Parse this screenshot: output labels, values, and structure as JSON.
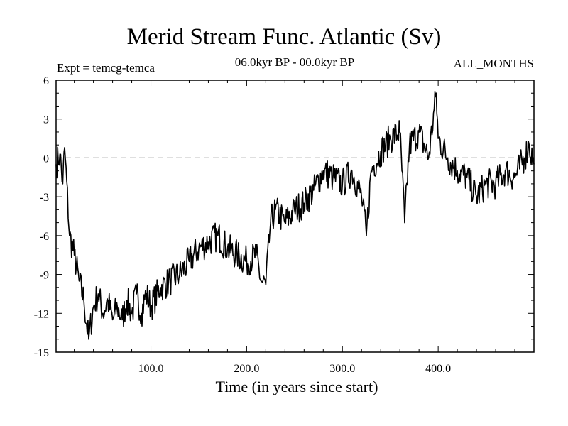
{
  "chart_data": {
    "type": "line",
    "title": "Merid Stream Func. Atlantic (Sv)",
    "experiment_label": "Expt = temcg-temca",
    "period_label": "06.0kyr BP - 00.0kyr BP",
    "months_label": "ALL_MONTHS",
    "xlabel": "Time (in years since start)",
    "ylabel": "",
    "xlim": [
      1,
      500
    ],
    "ylim": [
      -15,
      6
    ],
    "x_ticks": [
      100,
      200,
      300,
      400
    ],
    "x_tick_labels": [
      "100.0",
      "200.0",
      "300.0",
      "400.0"
    ],
    "y_ticks": [
      6,
      3,
      0,
      -3,
      -6,
      -9,
      -12,
      -15
    ],
    "y_tick_labels": [
      "6",
      "3",
      "0",
      "-3",
      "-6",
      "-9",
      "-12",
      "-15"
    ],
    "reference_line": {
      "y": 0,
      "style": "dashed"
    },
    "series": [
      {
        "name": "Merid Stream Func. Atlantic",
        "x": [
          1,
          5,
          8,
          10,
          15,
          20,
          25,
          30,
          35,
          40,
          45,
          50,
          55,
          60,
          65,
          70,
          75,
          80,
          85,
          90,
          95,
          100,
          110,
          120,
          130,
          140,
          150,
          160,
          170,
          180,
          190,
          200,
          210,
          215,
          220,
          225,
          230,
          240,
          250,
          260,
          270,
          280,
          290,
          300,
          310,
          320,
          325,
          330,
          340,
          350,
          360,
          365,
          370,
          380,
          390,
          398,
          400,
          410,
          420,
          430,
          440,
          450,
          460,
          470,
          480,
          490,
          495,
          500
        ],
        "values": [
          -0.5,
          0.3,
          -2.0,
          0.8,
          -6.0,
          -7.5,
          -9.5,
          -11.0,
          -14.0,
          -11.5,
          -10.5,
          -12.0,
          -11.0,
          -12.5,
          -11.5,
          -12.5,
          -11.0,
          -12.0,
          -10.5,
          -12.0,
          -10.5,
          -11.5,
          -10.0,
          -9.5,
          -9.0,
          -8.0,
          -7.0,
          -6.5,
          -6.0,
          -7.0,
          -7.5,
          -8.0,
          -7.5,
          -9.5,
          -9.8,
          -5.0,
          -4.0,
          -5.0,
          -4.0,
          -3.5,
          -2.5,
          -1.0,
          -1.5,
          -2.0,
          -1.0,
          -3.0,
          -6.0,
          -1.0,
          0.5,
          1.5,
          2.0,
          -5.0,
          1.0,
          2.0,
          0.0,
          5.0,
          1.5,
          0.0,
          -1.0,
          -1.5,
          -3.0,
          -2.0,
          -2.0,
          -1.0,
          -1.5,
          0.0,
          1.0,
          -0.5
        ]
      }
    ]
  }
}
